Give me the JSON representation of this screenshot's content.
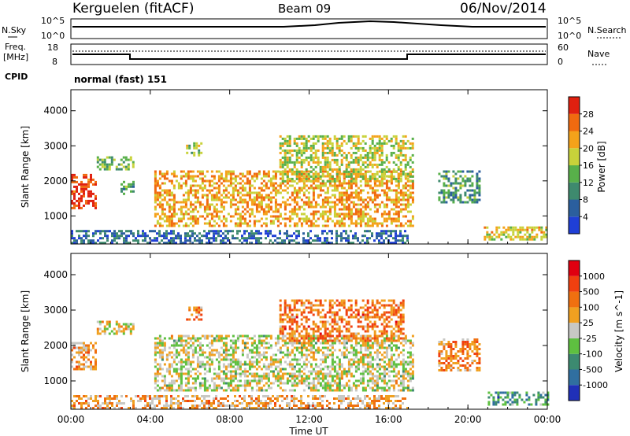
{
  "header": {
    "station": "Kerguelen (fitACF)",
    "beam": "Beam 09",
    "date": "06/Nov/2014"
  },
  "noise_panel": {
    "left_label": "N.Sky",
    "right_label": "N.Search",
    "left_ticks": [
      "10^5",
      "10^0"
    ],
    "right_ticks": [
      "10^5",
      "10^0"
    ]
  },
  "freq_panel": {
    "left_label_1": "Freq.",
    "left_label_2": "[MHz]",
    "right_label": "Nave",
    "left_ticks": [
      "18",
      "8"
    ],
    "right_ticks": [
      "60",
      "0"
    ]
  },
  "cpid": {
    "label": "CPID",
    "value": "normal (fast) 151"
  },
  "colors": {
    "power": [
      "#1f3fd6",
      "#2b5f9e",
      "#3e8a6e",
      "#58b04a",
      "#c8d23a",
      "#f4a21a",
      "#f06a10",
      "#e02010"
    ],
    "velocity": [
      "#2030b8",
      "#306fa0",
      "#3c8a70",
      "#5ec040",
      "#c8c8c4",
      "#f0a020",
      "#f07010",
      "#f04010",
      "#e00010"
    ]
  },
  "chart_data": [
    {
      "type": "heatmap",
      "title": "Power",
      "xlabel": "Time UT",
      "ylabel": "Slant Range [km]",
      "x_ticks": [
        "00:00",
        "04:00",
        "08:00",
        "12:00",
        "16:00",
        "20:00",
        "00:00"
      ],
      "y_ticks": [
        "1000",
        "2000",
        "3000",
        "4000"
      ],
      "xlim": [
        0,
        24
      ],
      "ylim": [
        200,
        4600
      ],
      "colorbar": {
        "label": "Power [dB]",
        "ticks": [
          "4",
          "8",
          "12",
          "16",
          "20",
          "24",
          "28"
        ],
        "range": [
          0,
          32
        ]
      },
      "regions": [
        {
          "t0": 0.0,
          "t1": 1.2,
          "r0": 1200,
          "r1": 2200,
          "level": 0.92
        },
        {
          "t0": 1.3,
          "t1": 3.2,
          "r0": 2300,
          "r1": 2700,
          "level": 0.45
        },
        {
          "t0": 2.5,
          "t1": 3.2,
          "r0": 1600,
          "r1": 2000,
          "level": 0.35
        },
        {
          "t0": 5.8,
          "t1": 6.6,
          "r0": 2700,
          "r1": 3100,
          "level": 0.5
        },
        {
          "t0": 4.2,
          "t1": 17.2,
          "r0": 700,
          "r1": 2300,
          "level": 0.7
        },
        {
          "t0": 10.5,
          "t1": 17.2,
          "r0": 2000,
          "r1": 3300,
          "level": 0.55
        },
        {
          "t0": 18.5,
          "t1": 20.6,
          "r0": 1400,
          "r1": 2300,
          "level": 0.35
        },
        {
          "t0": 20.8,
          "t1": 24.0,
          "r0": 300,
          "r1": 700,
          "level": 0.6
        },
        {
          "t0": 0.0,
          "t1": 17.0,
          "r0": 250,
          "r1": 600,
          "level": 0.2
        }
      ]
    },
    {
      "type": "heatmap",
      "title": "Velocity",
      "xlabel": "Time UT",
      "ylabel": "Slant Range [km]",
      "x_ticks": [
        "00:00",
        "04:00",
        "08:00",
        "12:00",
        "16:00",
        "20:00",
        "00:00"
      ],
      "y_ticks": [
        "1000",
        "2000",
        "3000",
        "4000"
      ],
      "xlim": [
        0,
        24
      ],
      "ylim": [
        200,
        4600
      ],
      "colorbar": {
        "label": "Velocity [m s^-1]",
        "ticks": [
          "1000",
          "500",
          "100",
          "25",
          "-25",
          "-100",
          "-500",
          "-1000"
        ],
        "range": [
          -1200,
          1200
        ]
      },
      "regions": [
        {
          "t0": 0.0,
          "t1": 1.2,
          "r0": 1300,
          "r1": 2100,
          "level": 0.62
        },
        {
          "t0": 1.3,
          "t1": 3.2,
          "r0": 2300,
          "r1": 2700,
          "level": 0.55
        },
        {
          "t0": 5.8,
          "t1": 6.6,
          "r0": 2700,
          "r1": 3100,
          "level": 0.7
        },
        {
          "t0": 4.2,
          "t1": 17.2,
          "r0": 700,
          "r1": 2300,
          "level": 0.5
        },
        {
          "t0": 10.5,
          "t1": 16.8,
          "r0": 2100,
          "r1": 3300,
          "level": 0.72
        },
        {
          "t0": 18.5,
          "t1": 20.6,
          "r0": 1300,
          "r1": 2200,
          "level": 0.7
        },
        {
          "t0": 21.0,
          "t1": 24.0,
          "r0": 300,
          "r1": 700,
          "level": 0.28
        },
        {
          "t0": 0.0,
          "t1": 17.0,
          "r0": 250,
          "r1": 600,
          "level": 0.62
        }
      ]
    }
  ]
}
